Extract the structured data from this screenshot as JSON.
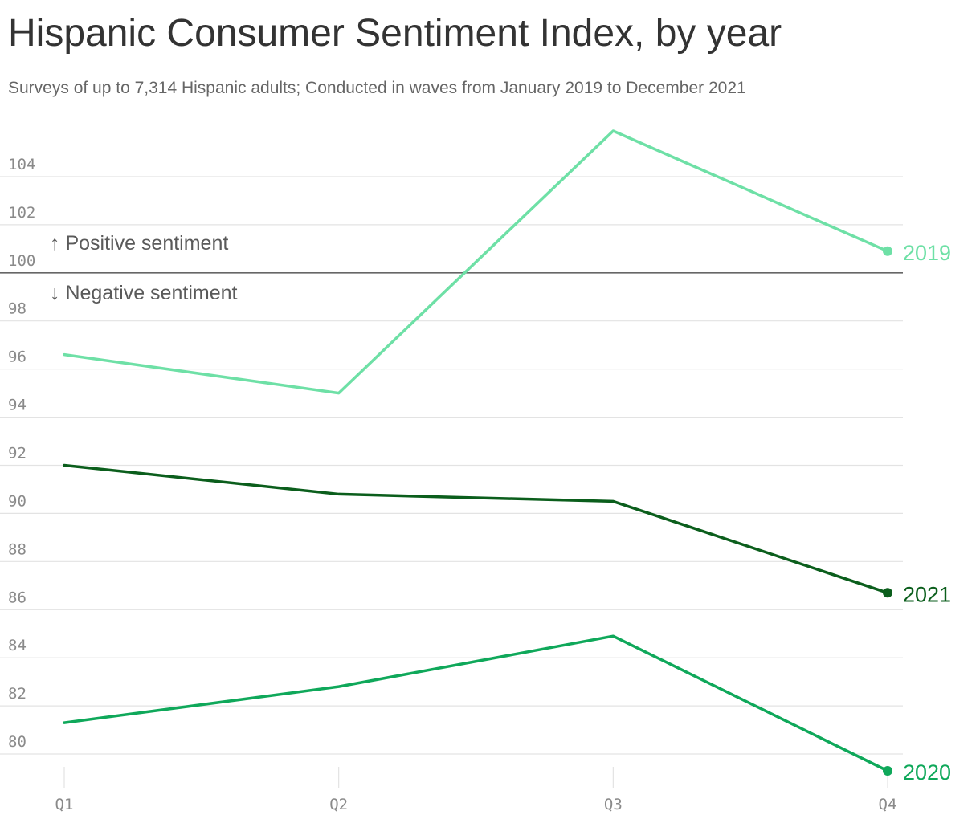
{
  "title": "Hispanic Consumer Sentiment Index, by year",
  "subtitle": "Surveys of up to 7,314 Hispanic adults; Conducted in waves from January 2019 to December 2021",
  "annotations": {
    "positive": "↑ Positive sentiment",
    "negative": "↓ Negative sentiment"
  },
  "colors": {
    "2019": "#6ee0a6",
    "2020": "#0fa85a",
    "2021": "#0b5e1c",
    "grid": "#e3e3e3",
    "baseline": "#666666",
    "tick": "#8a8a8a"
  },
  "chart_data": {
    "type": "line",
    "title": "Hispanic Consumer Sentiment Index, by year",
    "subtitle": "Surveys of up to 7,314 Hispanic adults; Conducted in waves from January 2019 to December 2021",
    "xlabel": "",
    "ylabel": "",
    "categories": [
      "Q1",
      "Q2",
      "Q3",
      "Q4"
    ],
    "ylim": [
      79.2,
      106
    ],
    "yticks": [
      80,
      82,
      84,
      86,
      88,
      90,
      92,
      94,
      96,
      98,
      100,
      102,
      104
    ],
    "reference_line": 100,
    "grid": true,
    "legend": "end-of-line labels",
    "series": [
      {
        "name": "2019",
        "values": [
          96.6,
          95.0,
          105.9,
          100.9
        ]
      },
      {
        "name": "2020",
        "values": [
          81.3,
          82.8,
          84.9,
          79.3
        ]
      },
      {
        "name": "2021",
        "values": [
          92.0,
          90.8,
          90.5,
          86.7
        ]
      }
    ]
  }
}
